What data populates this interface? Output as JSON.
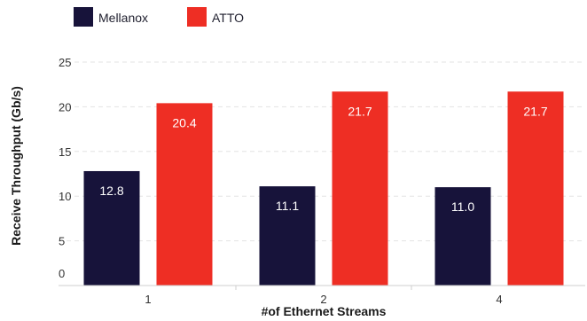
{
  "chart_data": {
    "type": "bar",
    "categories": [
      "1",
      "2",
      "4"
    ],
    "series": [
      {
        "name": "Mellanox",
        "color": "#17133a",
        "values": [
          12.8,
          11.1,
          11.0
        ]
      },
      {
        "name": "ATTO",
        "color": "#ee2e24",
        "values": [
          20.4,
          21.7,
          21.7
        ]
      }
    ],
    "xlabel": "#of Ethernet Streams",
    "ylabel": "Receive Throughput (Gb/s)",
    "ylim": [
      0,
      25
    ],
    "yticks": [
      "0",
      "5",
      "10",
      "15",
      "20",
      "25"
    ],
    "grid": true,
    "legend_position": "top-left"
  }
}
